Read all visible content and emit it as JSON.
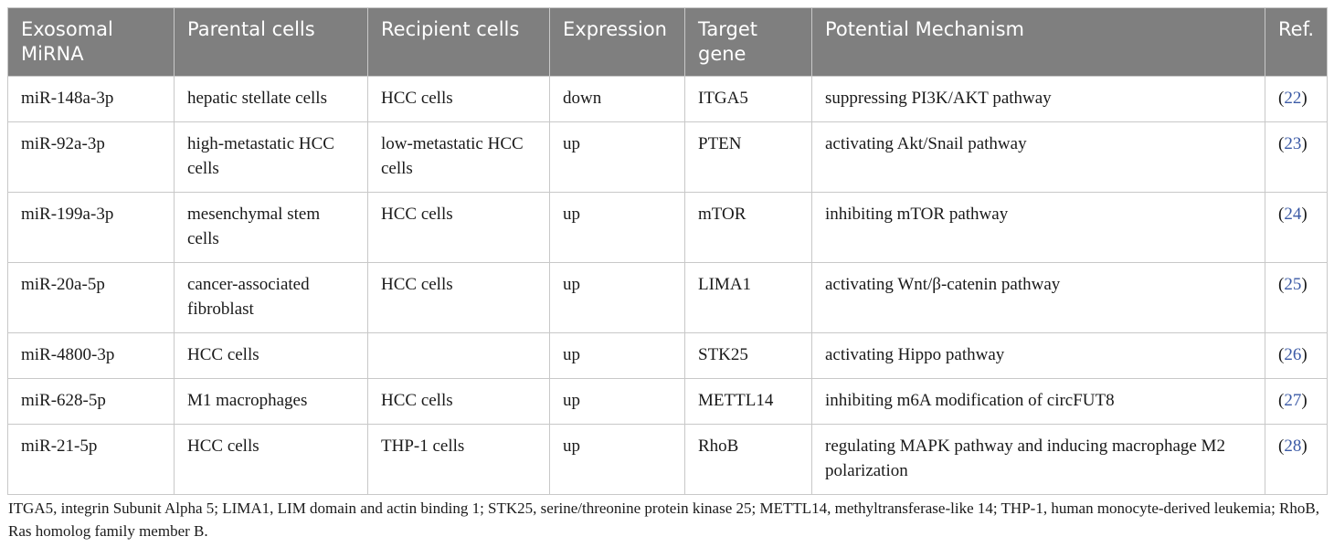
{
  "table": {
    "headers": [
      "Exosomal MiRNA",
      "Parental cells",
      "Recipient cells",
      "Expression",
      "Target gene",
      "Potential Mechanism",
      "Ref."
    ],
    "rows": [
      {
        "mirna": "miR-148a-3p",
        "parental": "hepatic stellate cells",
        "recipient": "HCC cells",
        "expression": "down",
        "target": "ITGA5",
        "mechanism": "suppressing PI3K/AKT pathway",
        "ref": "22"
      },
      {
        "mirna": "miR-92a-3p",
        "parental": "high-metastatic HCC cells",
        "recipient": "low-metastatic HCC cells",
        "expression": "up",
        "target": "PTEN",
        "mechanism": "activating Akt/Snail pathway",
        "ref": "23"
      },
      {
        "mirna": "miR-199a-3p",
        "parental": "mesenchymal stem cells",
        "recipient": "HCC cells",
        "expression": "up",
        "target": "mTOR",
        "mechanism": "inhibiting mTOR pathway",
        "ref": "24"
      },
      {
        "mirna": "miR-20a-5p",
        "parental": "cancer-associated fibroblast",
        "recipient": "HCC cells",
        "expression": "up",
        "target": "LIMA1",
        "mechanism": "activating Wnt/β-catenin pathway",
        "ref": "25"
      },
      {
        "mirna": "miR-4800-3p",
        "parental": "HCC cells",
        "recipient": "",
        "expression": "up",
        "target": "STK25",
        "mechanism": "activating Hippo pathway",
        "ref": "26"
      },
      {
        "mirna": "miR-628-5p",
        "parental": "M1 macrophages",
        "recipient": "HCC cells",
        "expression": "up",
        "target": "METTL14",
        "mechanism": "inhibiting m6A modification of circFUT8",
        "ref": "27"
      },
      {
        "mirna": "miR-21-5p",
        "parental": "HCC cells",
        "recipient": "THP-1 cells",
        "expression": "up",
        "target": "RhoB",
        "mechanism": "regulating MAPK pathway and inducing macrophage M2 polarization",
        "ref": "28"
      }
    ]
  },
  "footnote": "ITGA5, integrin Subunit Alpha 5; LIMA1, LIM domain and actin binding 1; STK25, serine/threonine protein kinase 25; METTL14, methyltransferase-like 14; THP-1, human monocyte-derived leukemia; RhoB, Ras homolog family member B.",
  "colors": {
    "header_bg": "#7f7f7f",
    "header_text": "#ffffff",
    "link": "#3b5aa6",
    "border": "#c8c8c8"
  }
}
